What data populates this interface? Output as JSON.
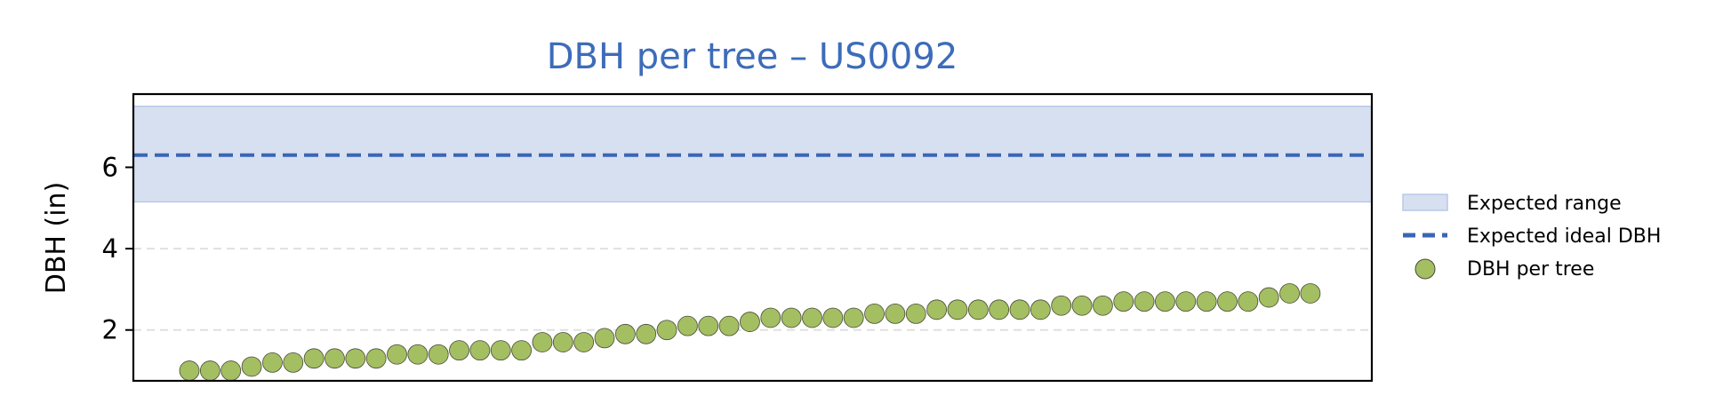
{
  "chart_data": {
    "type": "scatter",
    "title": "DBH per tree – US0092",
    "xlabel": "",
    "ylabel": "DBH (in)",
    "ylim": [
      0.75,
      7.8
    ],
    "yticks": [
      2,
      4,
      6
    ],
    "xticks_visible": false,
    "grid": "horizontal dashed",
    "legend_position": "right",
    "colors": {
      "title": "#3d6cb9",
      "band_fill": "#d7e0f0",
      "band_edge": "#b8c9e8",
      "ideal_line": "#3a66b5",
      "points": "#a3bf62",
      "point_edge": "#4a4a3a",
      "grid": "#e0e0e0"
    },
    "expected_range": {
      "low": 5.15,
      "high": 7.5,
      "label": "Expected range"
    },
    "expected_ideal": {
      "value": 6.3,
      "label": "Expected ideal DBH"
    },
    "series": [
      {
        "name": "DBH per tree",
        "values": [
          1.0,
          1.0,
          1.0,
          1.1,
          1.2,
          1.2,
          1.3,
          1.3,
          1.3,
          1.3,
          1.4,
          1.4,
          1.4,
          1.5,
          1.5,
          1.5,
          1.5,
          1.7,
          1.7,
          1.7,
          1.8,
          1.9,
          1.9,
          2.0,
          2.1,
          2.1,
          2.1,
          2.2,
          2.3,
          2.3,
          2.3,
          2.3,
          2.3,
          2.4,
          2.4,
          2.4,
          2.5,
          2.5,
          2.5,
          2.5,
          2.5,
          2.5,
          2.6,
          2.6,
          2.6,
          2.7,
          2.7,
          2.7,
          2.7,
          2.7,
          2.7,
          2.7,
          2.8,
          2.9,
          2.9
        ]
      }
    ]
  }
}
